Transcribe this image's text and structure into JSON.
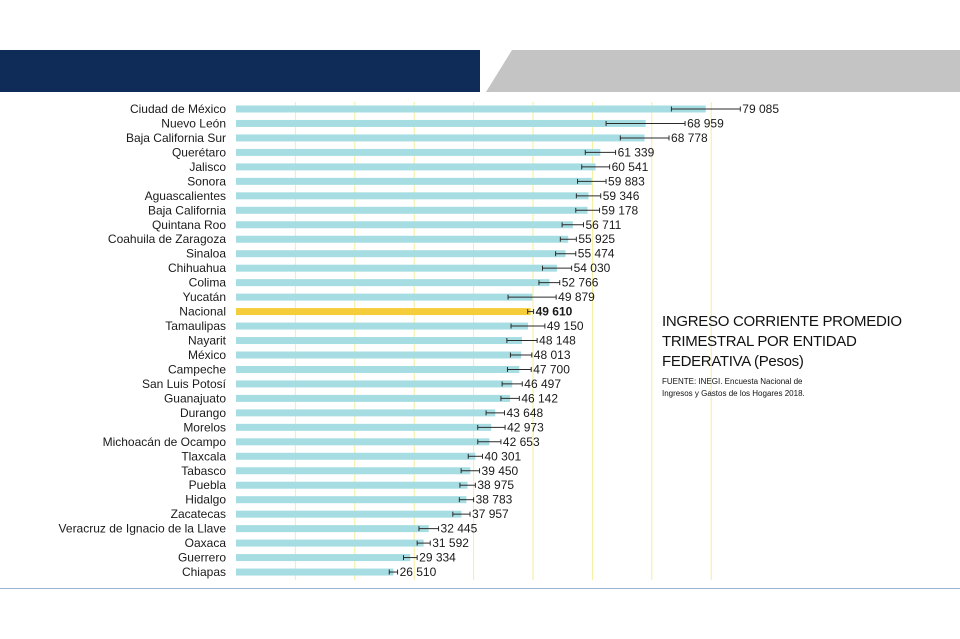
{
  "colors": {
    "header_navy": "#0f2b57",
    "header_gray": "#c4c4c4",
    "bar": "#a6dde3",
    "highlight_bar": "#f5cc3a",
    "gridline": "#f3ee9a",
    "error_bar": "#2b2b2b"
  },
  "title": {
    "lines": [
      "INGRESO CORRIENTE PROMEDIO",
      "TRIMESTRAL POR ENTIDAD",
      "FEDERATIVA (Pesos)"
    ],
    "source_lines": [
      "FUENTE: INEGI. Encuesta Nacional de",
      "Ingresos y Gastos de los Hogares 2018."
    ]
  },
  "chart_data": {
    "type": "bar",
    "orientation": "horizontal",
    "title": "INGRESO CORRIENTE PROMEDIO TRIMESTRAL POR ENTIDAD FEDERATIVA (Pesos)",
    "xlim": [
      0,
      90000
    ],
    "grid": true,
    "highlight": "Nacional",
    "error_bars": true,
    "categories": [
      "Ciudad de México",
      "Nuevo León",
      "Baja California Sur",
      "Querétaro",
      "Jalisco",
      "Sonora",
      "Aguascalientes",
      "Baja California",
      "Quintana Roo",
      "Coahuila de Zaragoza",
      "Sinaloa",
      "Chihuahua",
      "Colima",
      "Yucatán",
      "Nacional",
      "Tamaulipas",
      "Nayarit",
      "México",
      "Campeche",
      "San Luis Potosí",
      "Guanajuato",
      "Durango",
      "Morelos",
      "Michoacán de Ocampo",
      "Tlaxcala",
      "Tabasco",
      "Puebla",
      "Hidalgo",
      "Zacatecas",
      "Veracruz de Ignacio de la Llave",
      "Oaxaca",
      "Guerrero",
      "Chiapas"
    ],
    "values": [
      79085,
      68959,
      68778,
      61339,
      60541,
      59883,
      59346,
      59178,
      56711,
      55925,
      55474,
      54030,
      52766,
      49879,
      49610,
      49150,
      48148,
      48013,
      47700,
      46497,
      46142,
      43648,
      42973,
      42653,
      40301,
      39450,
      38975,
      38783,
      37957,
      32445,
      31592,
      29334,
      26510
    ],
    "value_labels": [
      "79 085",
      "68 959",
      "68 778",
      "61 339",
      "60 541",
      "59 883",
      "59 346",
      "59 178",
      "56 711",
      "55 925",
      "55 474",
      "54 030",
      "52 766",
      "49 879",
      "49 610",
      "49 150",
      "48 148",
      "48 013",
      "47 700",
      "46 497",
      "46 142",
      "43 648",
      "42 973",
      "42 653",
      "40 301",
      "39 450",
      "38 975",
      "38 783",
      "37 957",
      "32 445",
      "31 592",
      "29 334",
      "26 510"
    ],
    "ci_low": [
      73300,
      62300,
      64700,
      58800,
      58200,
      57500,
      57300,
      57200,
      54900,
      54600,
      53800,
      51600,
      51000,
      45800,
      49100,
      46300,
      45600,
      46200,
      45700,
      44800,
      44600,
      42100,
      40700,
      40700,
      39100,
      37900,
      37700,
      37600,
      36500,
      30800,
      30500,
      28200,
      25800
    ],
    "ci_high": [
      84900,
      75600,
      72900,
      63900,
      62900,
      62300,
      61400,
      61200,
      58500,
      57300,
      57200,
      56500,
      54500,
      53900,
      50100,
      52000,
      50700,
      49800,
      49700,
      48200,
      47700,
      45200,
      45300,
      44600,
      41500,
      41000,
      40300,
      40000,
      39400,
      34100,
      32700,
      30500,
      27200
    ]
  }
}
